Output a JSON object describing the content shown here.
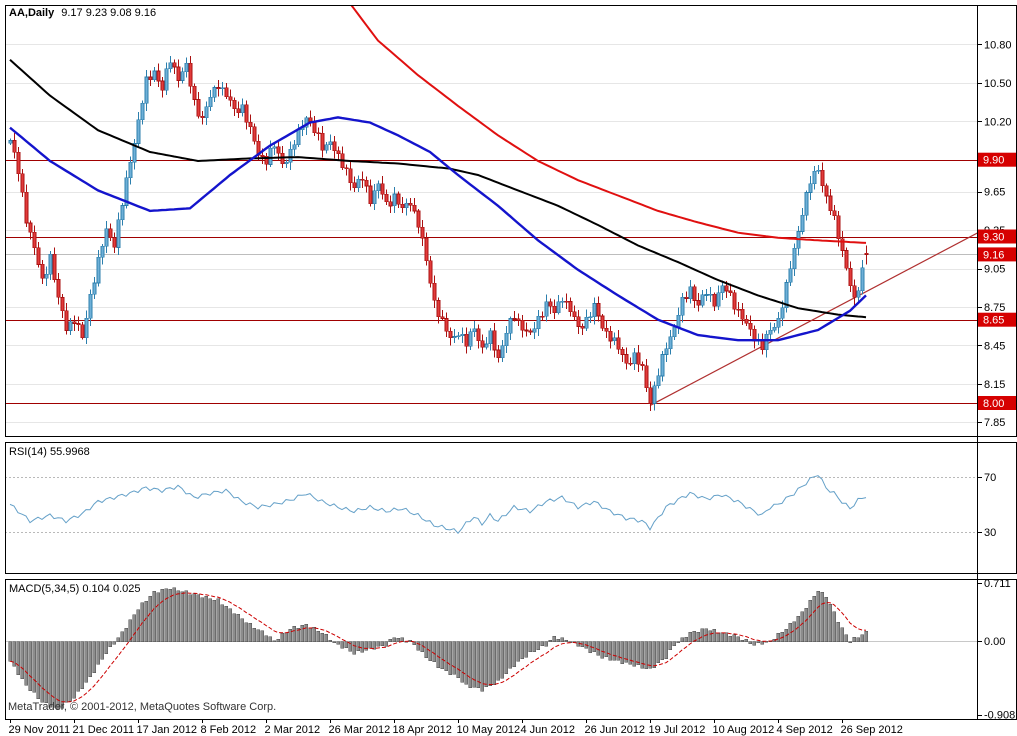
{
  "window": {
    "ohlc_text": "9.17 9.23 9.08 9.16",
    "copyright": "MetaTrader, © 2001-2012, MetaQuotes Software Corp."
  },
  "colors": {
    "up_candle": "#6fb0d8",
    "up_candle_border": "#2c7fad",
    "down_candle": "#e23b3b",
    "down_candle_border": "#aa1111",
    "ma_blue": "#1414cc",
    "ma_black": "#000000",
    "ma_red": "#e01010",
    "level_line": "#a00000",
    "trendline": "#b03030",
    "current_price_line": "#bdbdbd",
    "price_tag_bg": "#d60000",
    "price_tag_text": "#ffffff",
    "rsi_line": "#64a0c8",
    "rsi_level_line": "#b9b9b9",
    "macd_bar": "#8c8c8c",
    "macd_bar_border": "#4d4d4d",
    "macd_signal": "#cc0000",
    "grid": "#e6e6e6",
    "frame": "#000000"
  },
  "chart_data": [
    {
      "type": "candlestick",
      "title": "AA,Daily",
      "panel": "price",
      "ohlc": {
        "open": 9.17,
        "high": 9.23,
        "low": 9.08,
        "close": 9.16
      },
      "days_total": 215,
      "y_range": [
        11.1,
        7.75
      ],
      "y_ticks": [
        {
          "label": "10.80",
          "value": 10.8
        },
        {
          "label": "10.50",
          "value": 10.5
        },
        {
          "label": "10.20",
          "value": 10.2
        },
        {
          "label": "9.65",
          "value": 9.65
        },
        {
          "label": "9.35",
          "value": 9.35
        },
        {
          "label": "9.05",
          "value": 9.05
        },
        {
          "label": "8.75",
          "value": 8.75
        },
        {
          "label": "8.45",
          "value": 8.45
        },
        {
          "label": "8.15",
          "value": 8.15
        },
        {
          "label": "7.85",
          "value": 7.85
        }
      ],
      "price_tags": [
        {
          "label": "9.90",
          "value": 9.9
        },
        {
          "label": "9.30",
          "value": 9.3
        },
        {
          "label": "9.16",
          "value": 9.16
        },
        {
          "label": "8.65",
          "value": 8.65
        },
        {
          "label": "8.00",
          "value": 8.0
        }
      ],
      "hlines": [
        9.9,
        9.3,
        8.65,
        8.0
      ],
      "trendline": {
        "from": [
          160,
          7.98
        ],
        "to": [
          242,
          9.33
        ]
      },
      "x_label_step": 16,
      "x_tick_labels": [
        "29 Nov 2011",
        "21 Dec 2011",
        "17 Jan 2012",
        "8 Feb 2012",
        "2 Mar 2012",
        "26 Mar 2012",
        "18 Apr 2012",
        "10 May 2012",
        "4 Jun 2012",
        "26 Jun 2012",
        "19 Jul 2012",
        "10 Aug 2012",
        "4 Sep 2012",
        "26 Sep 2012"
      ],
      "price_anchors": [
        [
          0,
          10.05
        ],
        [
          2,
          9.8
        ],
        [
          4,
          9.45
        ],
        [
          6,
          9.2
        ],
        [
          8,
          8.95
        ],
        [
          10,
          9.15
        ],
        [
          12,
          8.8
        ],
        [
          14,
          8.6
        ],
        [
          16,
          8.65
        ],
        [
          18,
          8.5
        ],
        [
          20,
          8.85
        ],
        [
          22,
          9.1
        ],
        [
          24,
          9.35
        ],
        [
          26,
          9.25
        ],
        [
          28,
          9.55
        ],
        [
          30,
          9.9
        ],
        [
          32,
          10.2
        ],
        [
          34,
          10.5
        ],
        [
          36,
          10.6
        ],
        [
          38,
          10.45
        ],
        [
          40,
          10.68
        ],
        [
          42,
          10.55
        ],
        [
          44,
          10.62
        ],
        [
          46,
          10.35
        ],
        [
          48,
          10.22
        ],
        [
          50,
          10.38
        ],
        [
          52,
          10.5
        ],
        [
          54,
          10.4
        ],
        [
          56,
          10.28
        ],
        [
          58,
          10.32
        ],
        [
          60,
          10.12
        ],
        [
          62,
          9.95
        ],
        [
          64,
          9.9
        ],
        [
          66,
          10.0
        ],
        [
          68,
          9.88
        ],
        [
          70,
          9.95
        ],
        [
          72,
          10.1
        ],
        [
          74,
          10.25
        ],
        [
          76,
          10.12
        ],
        [
          78,
          10.0
        ],
        [
          80,
          10.05
        ],
        [
          82,
          9.9
        ],
        [
          84,
          9.82
        ],
        [
          86,
          9.68
        ],
        [
          88,
          9.75
        ],
        [
          90,
          9.6
        ],
        [
          92,
          9.7
        ],
        [
          94,
          9.55
        ],
        [
          96,
          9.62
        ],
        [
          98,
          9.5
        ],
        [
          100,
          9.58
        ],
        [
          102,
          9.4
        ],
        [
          104,
          9.1
        ],
        [
          106,
          8.8
        ],
        [
          108,
          8.62
        ],
        [
          110,
          8.5
        ],
        [
          112,
          8.56
        ],
        [
          114,
          8.45
        ],
        [
          116,
          8.6
        ],
        [
          118,
          8.42
        ],
        [
          120,
          8.52
        ],
        [
          122,
          8.36
        ],
        [
          124,
          8.55
        ],
        [
          126,
          8.68
        ],
        [
          128,
          8.6
        ],
        [
          130,
          8.52
        ],
        [
          132,
          8.66
        ],
        [
          134,
          8.78
        ],
        [
          136,
          8.7
        ],
        [
          138,
          8.84
        ],
        [
          140,
          8.72
        ],
        [
          142,
          8.58
        ],
        [
          144,
          8.66
        ],
        [
          146,
          8.74
        ],
        [
          148,
          8.6
        ],
        [
          150,
          8.52
        ],
        [
          152,
          8.42
        ],
        [
          154,
          8.32
        ],
        [
          156,
          8.36
        ],
        [
          158,
          8.26
        ],
        [
          160,
          8.02
        ],
        [
          162,
          8.22
        ],
        [
          164,
          8.45
        ],
        [
          166,
          8.6
        ],
        [
          168,
          8.78
        ],
        [
          170,
          8.9
        ],
        [
          172,
          8.76
        ],
        [
          174,
          8.86
        ],
        [
          176,
          8.8
        ],
        [
          178,
          8.9
        ],
        [
          180,
          8.84
        ],
        [
          182,
          8.72
        ],
        [
          184,
          8.6
        ],
        [
          186,
          8.52
        ],
        [
          188,
          8.44
        ],
        [
          190,
          8.56
        ],
        [
          192,
          8.66
        ],
        [
          194,
          8.9
        ],
        [
          196,
          9.2
        ],
        [
          198,
          9.5
        ],
        [
          200,
          9.72
        ],
        [
          202,
          9.84
        ],
        [
          204,
          9.6
        ],
        [
          206,
          9.42
        ],
        [
          208,
          9.2
        ],
        [
          210,
          8.92
        ],
        [
          211,
          8.78
        ],
        [
          212,
          8.9
        ],
        [
          213,
          9.05
        ],
        [
          214,
          9.16
        ]
      ],
      "ma_blue": [
        [
          0,
          10.15
        ],
        [
          10,
          9.89
        ],
        [
          22,
          9.66
        ],
        [
          35,
          9.5
        ],
        [
          45,
          9.52
        ],
        [
          55,
          9.78
        ],
        [
          65,
          10.01
        ],
        [
          75,
          10.19
        ],
        [
          82,
          10.23
        ],
        [
          90,
          10.19
        ],
        [
          97,
          10.09
        ],
        [
          105,
          9.96
        ],
        [
          112,
          9.78
        ],
        [
          122,
          9.54
        ],
        [
          132,
          9.27
        ],
        [
          142,
          9.04
        ],
        [
          152,
          8.84
        ],
        [
          162,
          8.65
        ],
        [
          172,
          8.53
        ],
        [
          182,
          8.49
        ],
        [
          192,
          8.49
        ],
        [
          202,
          8.57
        ],
        [
          210,
          8.72
        ],
        [
          214,
          8.84
        ]
      ],
      "ma_black": [
        [
          0,
          10.68
        ],
        [
          10,
          10.4
        ],
        [
          22,
          10.13
        ],
        [
          35,
          9.96
        ],
        [
          47,
          9.89
        ],
        [
          60,
          9.91
        ],
        [
          72,
          9.92
        ],
        [
          85,
          9.89
        ],
        [
          97,
          9.87
        ],
        [
          110,
          9.83
        ],
        [
          117,
          9.78
        ],
        [
          127,
          9.66
        ],
        [
          137,
          9.54
        ],
        [
          147,
          9.39
        ],
        [
          157,
          9.23
        ],
        [
          167,
          9.1
        ],
        [
          177,
          8.96
        ],
        [
          187,
          8.84
        ],
        [
          197,
          8.74
        ],
        [
          207,
          8.69
        ],
        [
          214,
          8.67
        ]
      ],
      "ma_red": [
        [
          85,
          11.12
        ],
        [
          92,
          10.83
        ],
        [
          102,
          10.56
        ],
        [
          112,
          10.32
        ],
        [
          122,
          10.09
        ],
        [
          132,
          9.89
        ],
        [
          142,
          9.74
        ],
        [
          152,
          9.62
        ],
        [
          162,
          9.5
        ],
        [
          172,
          9.41
        ],
        [
          182,
          9.33
        ],
        [
          192,
          9.29
        ],
        [
          202,
          9.27
        ],
        [
          214,
          9.25
        ]
      ]
    },
    {
      "type": "line",
      "title": "RSI(14)",
      "current_value": "55.9968",
      "panel": "rsi",
      "y_range": [
        94.5,
        1.0
      ],
      "levels": [
        {
          "label": "70",
          "value": 70
        },
        {
          "label": "30",
          "value": 30
        }
      ],
      "anchors": [
        [
          0,
          50
        ],
        [
          5,
          38
        ],
        [
          10,
          42
        ],
        [
          14,
          38
        ],
        [
          18,
          43
        ],
        [
          22,
          52
        ],
        [
          26,
          55
        ],
        [
          30,
          58
        ],
        [
          34,
          62
        ],
        [
          38,
          60
        ],
        [
          42,
          63
        ],
        [
          46,
          55
        ],
        [
          50,
          58
        ],
        [
          54,
          60
        ],
        [
          58,
          52
        ],
        [
          62,
          48
        ],
        [
          66,
          50
        ],
        [
          70,
          53
        ],
        [
          74,
          58
        ],
        [
          78,
          52
        ],
        [
          82,
          48
        ],
        [
          86,
          45
        ],
        [
          90,
          48
        ],
        [
          94,
          45
        ],
        [
          98,
          47
        ],
        [
          102,
          42
        ],
        [
          106,
          35
        ],
        [
          110,
          32
        ],
        [
          112,
          30
        ],
        [
          114,
          36
        ],
        [
          116,
          41
        ],
        [
          118,
          36
        ],
        [
          120,
          42
        ],
        [
          122,
          38
        ],
        [
          126,
          48
        ],
        [
          130,
          45
        ],
        [
          134,
          52
        ],
        [
          138,
          55
        ],
        [
          142,
          48
        ],
        [
          146,
          52
        ],
        [
          150,
          45
        ],
        [
          154,
          40
        ],
        [
          158,
          38
        ],
        [
          160,
          33
        ],
        [
          162,
          40
        ],
        [
          164,
          48
        ],
        [
          168,
          55
        ],
        [
          170,
          58
        ],
        [
          174,
          54
        ],
        [
          178,
          57
        ],
        [
          182,
          52
        ],
        [
          186,
          45
        ],
        [
          188,
          42
        ],
        [
          190,
          48
        ],
        [
          192,
          50
        ],
        [
          196,
          58
        ],
        [
          200,
          68
        ],
        [
          202,
          72
        ],
        [
          204,
          62
        ],
        [
          206,
          58
        ],
        [
          208,
          52
        ],
        [
          210,
          47
        ],
        [
          212,
          53
        ],
        [
          214,
          56
        ]
      ]
    },
    {
      "type": "bar",
      "title": "MACD(5,34,5)",
      "value_macd": "0.104",
      "value_signal": "0.025",
      "panel": "macd",
      "y_range": [
        0.75,
        -0.95
      ],
      "y_ticks": [
        {
          "label": "0.711",
          "value": 0.711
        },
        {
          "label": "0.00",
          "value": 0.0
        },
        {
          "label": "-0.908",
          "value": -0.908
        }
      ],
      "anchors": [
        [
          0,
          -0.25
        ],
        [
          4,
          -0.55
        ],
        [
          8,
          -0.75
        ],
        [
          12,
          -0.85
        ],
        [
          16,
          -0.7
        ],
        [
          20,
          -0.45
        ],
        [
          24,
          -0.15
        ],
        [
          28,
          0.1
        ],
        [
          32,
          0.4
        ],
        [
          36,
          0.6
        ],
        [
          40,
          0.65
        ],
        [
          44,
          0.6
        ],
        [
          48,
          0.55
        ],
        [
          52,
          0.5
        ],
        [
          56,
          0.35
        ],
        [
          60,
          0.2
        ],
        [
          64,
          0.08
        ],
        [
          66,
          0.0
        ],
        [
          70,
          0.15
        ],
        [
          74,
          0.2
        ],
        [
          78,
          0.1
        ],
        [
          82,
          -0.05
        ],
        [
          86,
          -0.15
        ],
        [
          90,
          -0.1
        ],
        [
          94,
          -0.05
        ],
        [
          96,
          0.05
        ],
        [
          100,
          0.0
        ],
        [
          104,
          -0.2
        ],
        [
          108,
          -0.35
        ],
        [
          112,
          -0.45
        ],
        [
          114,
          -0.55
        ],
        [
          118,
          -0.6
        ],
        [
          122,
          -0.5
        ],
        [
          126,
          -0.3
        ],
        [
          130,
          -0.15
        ],
        [
          134,
          -0.05
        ],
        [
          136,
          0.05
        ],
        [
          140,
          0.0
        ],
        [
          144,
          -0.1
        ],
        [
          148,
          -0.2
        ],
        [
          152,
          -0.25
        ],
        [
          156,
          -0.3
        ],
        [
          160,
          -0.35
        ],
        [
          164,
          -0.2
        ],
        [
          166,
          -0.05
        ],
        [
          170,
          0.1
        ],
        [
          174,
          0.15
        ],
        [
          178,
          0.1
        ],
        [
          182,
          0.05
        ],
        [
          186,
          -0.05
        ],
        [
          190,
          0.0
        ],
        [
          194,
          0.15
        ],
        [
          198,
          0.35
        ],
        [
          202,
          0.62
        ],
        [
          204,
          0.55
        ],
        [
          206,
          0.35
        ],
        [
          208,
          0.15
        ],
        [
          210,
          0.0
        ],
        [
          212,
          0.05
        ],
        [
          214,
          0.104
        ]
      ]
    }
  ]
}
